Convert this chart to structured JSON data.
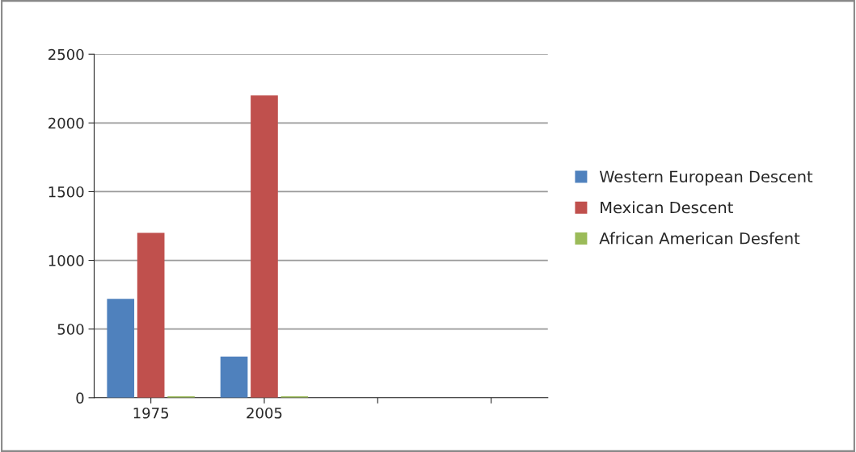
{
  "chart_data": {
    "type": "bar",
    "categories": [
      "1975",
      "2005",
      null,
      null
    ],
    "series": [
      {
        "name": "Western European Descent",
        "color": "#4f81bd",
        "values": [
          720,
          300,
          null,
          null
        ]
      },
      {
        "name": "Mexican Descent",
        "color": "#c0504d",
        "values": [
          1200,
          2200,
          null,
          null
        ]
      },
      {
        "name": "African American Desfent",
        "color": "#9bbb59",
        "values": [
          10,
          10,
          null,
          null
        ]
      }
    ],
    "ylim": [
      0,
      2500
    ],
    "yticks": [
      0,
      500,
      1000,
      1500,
      2000,
      2500
    ],
    "grid": "y",
    "legend": "right"
  }
}
